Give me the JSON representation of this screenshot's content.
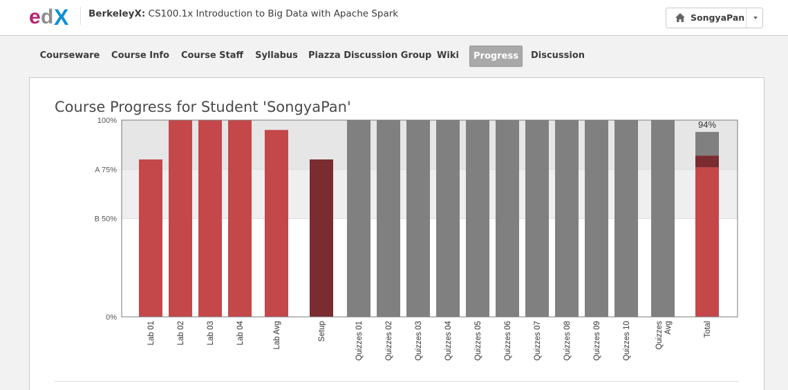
{
  "header": {
    "course_org": "BerkeleyX:",
    "course_name": " CS100.1x Introduction to Big Data with Apache Spark",
    "user_name": "SongyaPan",
    "icons": {
      "home": "home-icon",
      "caret": "caret-down-icon",
      "logo": "edx-logo"
    }
  },
  "nav": {
    "items": [
      {
        "label": "Courseware"
      },
      {
        "label": "Course Info"
      },
      {
        "label": "Course Staff"
      },
      {
        "label": "Syllabus"
      },
      {
        "label": "Piazza Discussion Group"
      },
      {
        "label": "Wiki"
      },
      {
        "label": "Progress",
        "active": true
      },
      {
        "label": "Discussion"
      }
    ]
  },
  "page": {
    "title": "Course Progress for Student 'SongyaPan'"
  },
  "colors": {
    "lab": "#c4474a",
    "setup": "#7a2c30",
    "quiz": "#808080",
    "band_a": "#e6e6e6",
    "band_b": "#efefef"
  },
  "chart_data": {
    "type": "bar",
    "y_ticks": [
      {
        "value": 100,
        "label": "100%"
      },
      {
        "value": 75,
        "label": "A 75%"
      },
      {
        "value": 50,
        "label": "B 50%"
      },
      {
        "value": 0,
        "label": "0%"
      }
    ],
    "ylim": [
      0,
      100
    ],
    "grade_bands": [
      {
        "grade": "A",
        "from": 75,
        "to": 100
      },
      {
        "grade": "B",
        "from": 50,
        "to": 75
      }
    ],
    "bars": [
      {
        "label": "Lab 01",
        "value": 80,
        "group": "lab"
      },
      {
        "label": "Lab 02",
        "value": 100,
        "group": "lab"
      },
      {
        "label": "Lab 03",
        "value": 100,
        "group": "lab"
      },
      {
        "label": "Lab 04",
        "value": 100,
        "group": "lab"
      },
      {
        "label": "Lab Avg",
        "value": 95,
        "group": "lab"
      },
      {
        "label": "Setup",
        "value": 80,
        "group": "setup"
      },
      {
        "label": "Quizzes 01",
        "value": 100,
        "group": "quiz"
      },
      {
        "label": "Quizzes 02",
        "value": 100,
        "group": "quiz"
      },
      {
        "label": "Quizzes 03",
        "value": 100,
        "group": "quiz"
      },
      {
        "label": "Quizzes 04",
        "value": 100,
        "group": "quiz"
      },
      {
        "label": "Quizzes 05",
        "value": 100,
        "group": "quiz"
      },
      {
        "label": "Quizzes 06",
        "value": 100,
        "group": "quiz"
      },
      {
        "label": "Quizzes 07",
        "value": 100,
        "group": "quiz"
      },
      {
        "label": "Quizzes 08",
        "value": 100,
        "group": "quiz"
      },
      {
        "label": "Quizzes 09",
        "value": 100,
        "group": "quiz"
      },
      {
        "label": "Quizzes 10",
        "value": 100,
        "group": "quiz"
      },
      {
        "label": "Quizzes Avg",
        "value": 100,
        "group": "quiz"
      }
    ],
    "total": {
      "label": "Total",
      "value_label": "94%",
      "segments": [
        {
          "group": "lab",
          "value": 76
        },
        {
          "group": "setup",
          "value": 6
        },
        {
          "group": "quiz",
          "value": 12
        }
      ]
    }
  }
}
